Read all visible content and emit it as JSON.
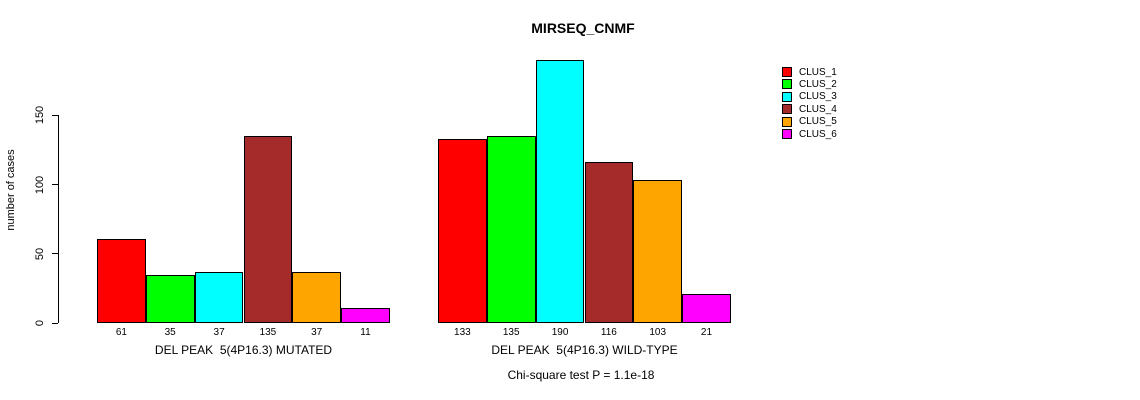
{
  "chart_data": {
    "type": "bar",
    "title": "MIRSEQ_CNMF",
    "ylabel": "number of cases",
    "xlabel": "",
    "yticks": [
      0,
      50,
      100,
      150
    ],
    "ylim": [
      0,
      190
    ],
    "grid": false,
    "bar_value_labels": true,
    "legend_position": "right",
    "categories": [
      "CLUS_1",
      "CLUS_2",
      "CLUS_3",
      "CLUS_4",
      "CLUS_5",
      "CLUS_6"
    ],
    "colors": [
      "#FF0000",
      "#00FF00",
      "#00FFFF",
      "#A52A2A",
      "#FFA500",
      "#FF00FF"
    ],
    "groups": [
      {
        "label": "DEL PEAK  5(4P16.3) MUTATED",
        "values": [
          61,
          35,
          37,
          135,
          37,
          11
        ]
      },
      {
        "label": "DEL PEAK  5(4P16.3) WILD-TYPE",
        "values": [
          133,
          135,
          190,
          116,
          103,
          21
        ]
      }
    ],
    "footer": "Chi-square test P = 1.1e-18"
  }
}
